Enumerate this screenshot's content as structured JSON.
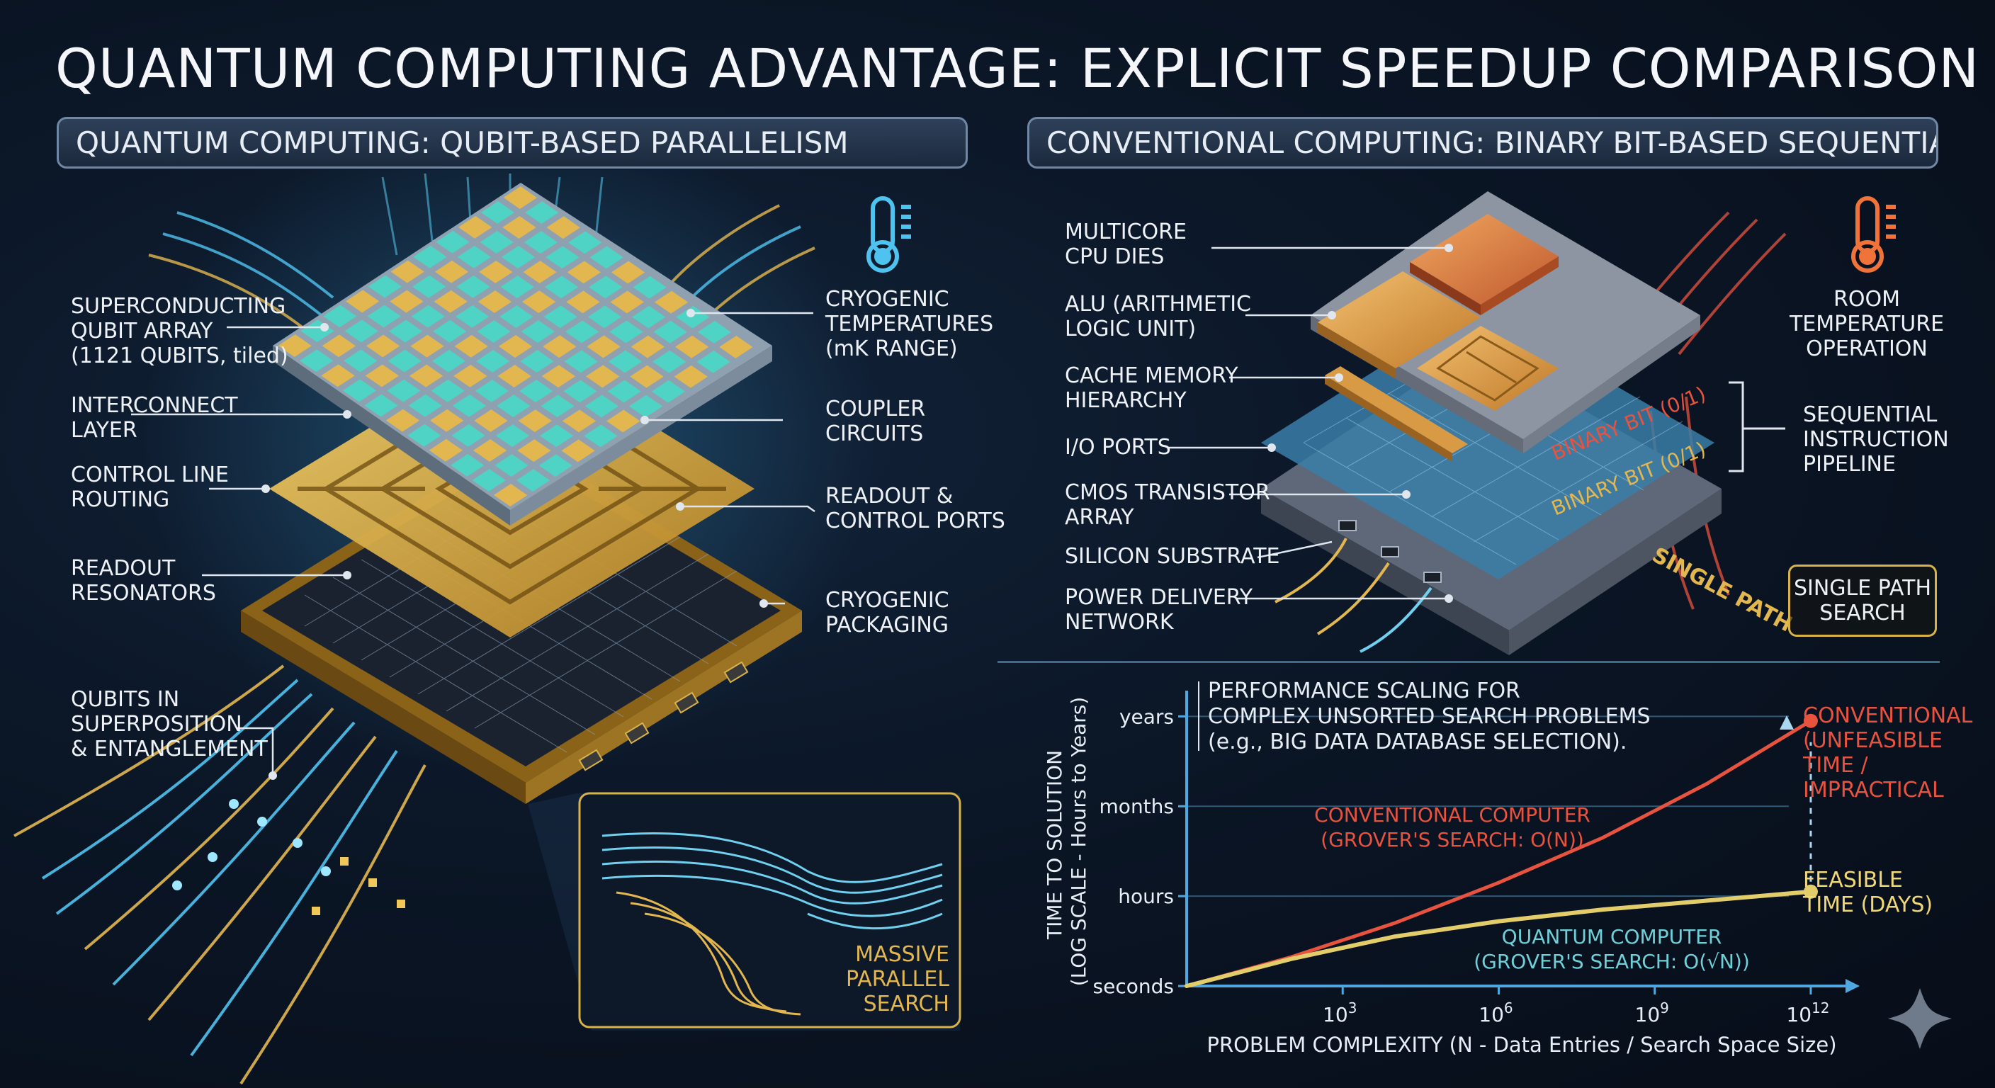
{
  "title": "QUANTUM COMPUTING ADVANTAGE: EXPLICIT SPEEDUP COMPARISON",
  "quantum": {
    "header": "QUANTUM COMPUTING: QUBIT-BASED PARALLELISM",
    "labels": {
      "qubit_array": "SUPERCONDUCTING\nQUBIT ARRAY\n(1121 QUBITS, tiled)",
      "interconnect": "INTERCONNECT\nLAYER",
      "control_line": "CONTROL LINE\nROUTING",
      "readout_res": "READOUT\nRESONATORS",
      "superposition": "QUBITS IN\nSUPERPOSITION\n& ENTANGLEMENT",
      "cryo_temp": "CRYOGENIC\nTEMPERATURES\n(mK RANGE)",
      "coupler": "COUPLER\nCIRCUITS",
      "readout_ports": "READOUT &\nCONTROL PORTS",
      "cryo_pack": "CRYOGENIC\nPACKAGING",
      "massive": "MASSIVE\nPARALLEL\nSEARCH"
    },
    "qubit_colors": [
      "#4fd3c4",
      "#e3b74f"
    ]
  },
  "conventional": {
    "header": "CONVENTIONAL COMPUTING: BINARY BIT-BASED SEQUENTIALISM",
    "labels": {
      "multicore": "MULTICORE\nCPU DIES",
      "alu": "ALU (ARITHMETIC\nLOGIC UNIT)",
      "cache": "CACHE MEMORY\nHIERARCHY",
      "io": "I/O PORTS",
      "cmos": "CMOS TRANSISTOR\nARRAY",
      "silicon": "SILICON SUBSTRATE",
      "power": "POWER DELIVERY\nNETWORK",
      "room_temp": "ROOM\nTEMPERATURE\nOPERATION",
      "sequential": "SEQUENTIAL\nINSTRUCTION\nPIPELINE",
      "single_path_box": "SINGLE PATH\nSEARCH",
      "binary_bit": "BINARY BIT (0/1)",
      "single_path": "SINGLE PATH"
    }
  },
  "chart_data": {
    "type": "line",
    "title": "PERFORMANCE SCALING FOR\nCOMPLEX UNSORTED SEARCH PROBLEMS\n(e.g., BIG DATA DATABASE SELECTION).",
    "xlabel": "PROBLEM COMPLEXITY (N - Data Entries / Search Space Size)",
    "ylabel": "TIME TO SOLUTION\n(LOG SCALE - Hours to Years)",
    "x_ticks": [
      {
        "base": "10",
        "exp": "3",
        "pos": 3
      },
      {
        "base": "10",
        "exp": "6",
        "pos": 6
      },
      {
        "base": "10",
        "exp": "9",
        "pos": 9
      },
      {
        "base": "10",
        "exp": "12",
        "pos": 12
      }
    ],
    "y_ticks": [
      {
        "label": "seconds",
        "level": 0
      },
      {
        "label": "hours",
        "level": 1
      },
      {
        "label": "months",
        "level": 2
      },
      {
        "label": "years",
        "level": 3
      }
    ],
    "xlim": [
      0,
      12.6
    ],
    "ylim": [
      0,
      3.05
    ],
    "series": [
      {
        "name": "CONVENTIONAL COMPUTER\n(GROVER'S SEARCH: O(N))",
        "color": "#e8533f",
        "x": [
          0,
          2,
          4,
          6,
          8,
          10,
          12
        ],
        "y": [
          0,
          0.32,
          0.7,
          1.15,
          1.65,
          2.25,
          2.95
        ]
      },
      {
        "name": "QUANTUM COMPUTER\n(GROVER'S SEARCH: O(√N))",
        "color": "#e3cd6a",
        "x": [
          0,
          2,
          4,
          6,
          8,
          10,
          12
        ],
        "y": [
          0,
          0.3,
          0.55,
          0.72,
          0.85,
          0.95,
          1.05
        ]
      }
    ],
    "annotations": {
      "conventional_end": "CONVENTIONAL\n(UNFEASIBLE\nTIME /\nIMPRACTICAL",
      "quantum_end": "FEASIBLE\nTIME (DAYS)"
    },
    "colors": {
      "conventional": "#e8533f",
      "quantum": "#f0d878",
      "quantum_label": "#6fd0d8"
    }
  }
}
